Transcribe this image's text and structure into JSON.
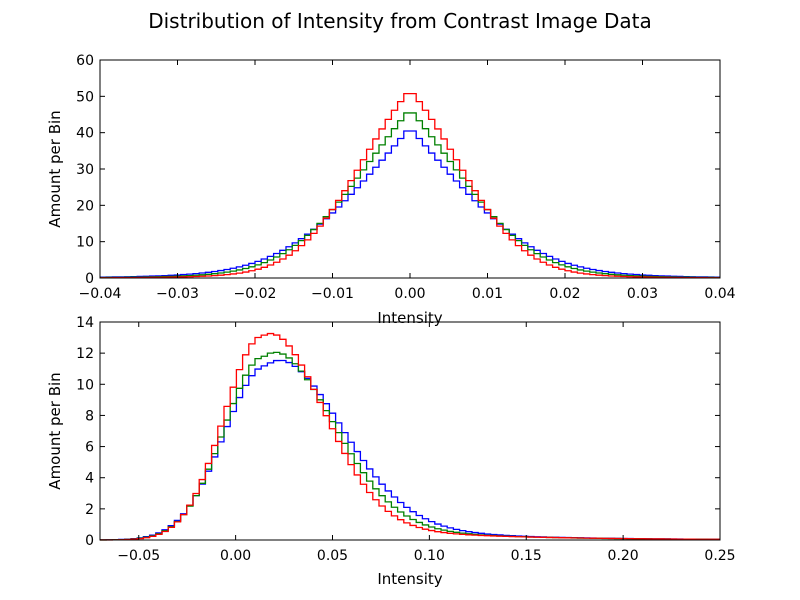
{
  "title": "Distribution of Intensity from Contrast Image Data",
  "chart_data": [
    {
      "type": "line",
      "step": true,
      "xlabel": "Intensity",
      "ylabel": "Amount per Bin",
      "xlim": [
        -0.04,
        0.04
      ],
      "ylim": [
        0,
        60
      ],
      "xticks": [
        -0.04,
        -0.03,
        -0.02,
        -0.01,
        0.0,
        0.01,
        0.02,
        0.03,
        0.04
      ],
      "xtick_labels": [
        "−0.04",
        "−0.03",
        "−0.02",
        "−0.01",
        "0.00",
        "0.01",
        "0.02",
        "0.03",
        "0.04"
      ],
      "yticks": [
        0,
        10,
        20,
        30,
        40,
        50,
        60
      ],
      "ytick_labels": [
        "0",
        "10",
        "20",
        "30",
        "40",
        "50",
        "60"
      ],
      "grid": false,
      "series": [
        {
          "color": "#0000ff",
          "peak": 41.5,
          "center": 0.0,
          "sigma": 0.0095,
          "tail": 0.55
        },
        {
          "color": "#008000",
          "peak": 46.5,
          "center": 0.0,
          "sigma": 0.0086,
          "tail": 0.45
        },
        {
          "color": "#ff0000",
          "peak": 51.8,
          "center": 0.0,
          "sigma": 0.0077,
          "tail": 0.35
        }
      ]
    },
    {
      "type": "line",
      "step": true,
      "xlabel": "Intensity",
      "ylabel": "Amount per Bin",
      "xlim": [
        -0.07,
        0.25
      ],
      "ylim": [
        0,
        14
      ],
      "xticks": [
        -0.05,
        0.0,
        0.05,
        0.1,
        0.15,
        0.2,
        0.25
      ],
      "xtick_labels": [
        "−0.05",
        "0.00",
        "0.05",
        "0.10",
        "0.15",
        "0.20",
        "0.25"
      ],
      "yticks": [
        0,
        2,
        4,
        6,
        8,
        10,
        12,
        14
      ],
      "ytick_labels": [
        "0",
        "2",
        "4",
        "6",
        "8",
        "10",
        "12",
        "14"
      ],
      "grid": false,
      "series": [
        {
          "color": "#0000ff",
          "peak": 11.2,
          "center": 0.016,
          "sigma_left": 0.022,
          "sigma_right": 0.036,
          "tail_amp": 2.1,
          "tail_decay": 0.06
        },
        {
          "color": "#008000",
          "peak": 11.8,
          "center": 0.015,
          "sigma_left": 0.021,
          "sigma_right": 0.033,
          "tail_amp": 1.9,
          "tail_decay": 0.06
        },
        {
          "color": "#ff0000",
          "peak": 13.1,
          "center": 0.014,
          "sigma_left": 0.02,
          "sigma_right": 0.03,
          "tail_amp": 1.6,
          "tail_decay": 0.065
        }
      ]
    }
  ]
}
